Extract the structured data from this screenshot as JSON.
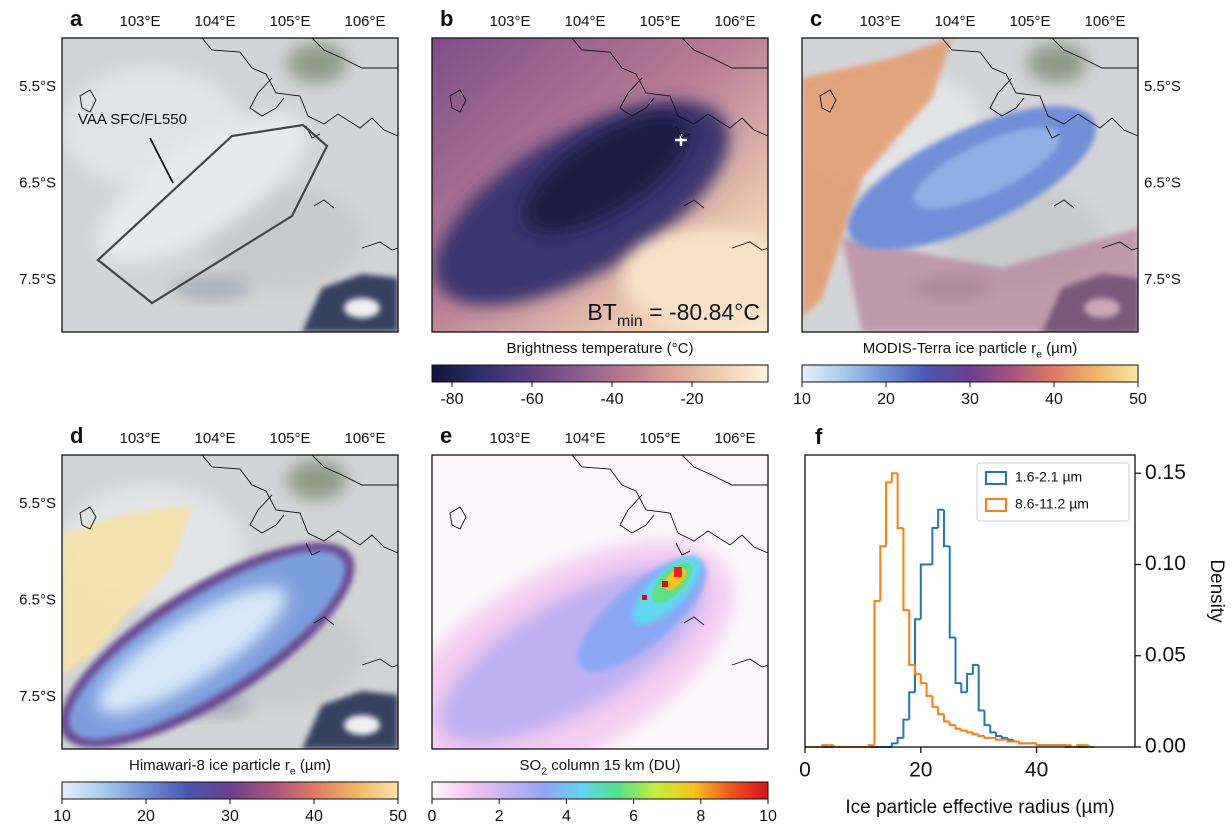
{
  "chart_data": [
    {
      "type": "map",
      "label": "a",
      "xlim": [
        101.96,
        106.44
      ],
      "ylim": [
        -8.04,
        -4.99
      ],
      "xticks": [
        {
          "value": 103,
          "label": "103°E"
        },
        {
          "value": 104,
          "label": "104°E"
        },
        {
          "value": 105,
          "label": "105°E"
        },
        {
          "value": 106,
          "label": "106°E"
        }
      ],
      "yticks": [
        {
          "value": -5.5,
          "label": "5.5°S"
        },
        {
          "value": -6.5,
          "label": "6.5°S"
        },
        {
          "value": -7.5,
          "label": "7.5°S"
        }
      ],
      "lat_labels": "left",
      "annotation": "VAA SFC/FL550"
    },
    {
      "type": "map",
      "label": "b",
      "xlim": [
        101.96,
        106.44
      ],
      "ylim": [
        -8.04,
        -4.99
      ],
      "xticks": [
        {
          "value": 103,
          "label": "103°E"
        },
        {
          "value": 104,
          "label": "104°E"
        },
        {
          "value": 105,
          "label": "105°E"
        },
        {
          "value": 106,
          "label": "106°E"
        }
      ],
      "annotation": [
        "BT",
        "min",
        " = -80.84°C"
      ],
      "colorbar": {
        "label": [
          "Brightness temperature (°C)"
        ],
        "lim": [
          -85,
          -1
        ],
        "ticks": [
          -80,
          -60,
          -40,
          -20
        ],
        "colors": [
          "#12123a",
          "#2d2f6e",
          "#5a3f82",
          "#8a5a8e",
          "#b8788f",
          "#dba396",
          "#f1cdb0",
          "#fdf3dc"
        ]
      }
    },
    {
      "type": "map",
      "label": "c",
      "xlim": [
        101.96,
        106.44
      ],
      "ylim": [
        -8.04,
        -4.99
      ],
      "xticks": [
        {
          "value": 103,
          "label": "103°E"
        },
        {
          "value": 104,
          "label": "104°E"
        },
        {
          "value": 105,
          "label": "105°E"
        },
        {
          "value": 106,
          "label": "106°E"
        }
      ],
      "yticks": [
        {
          "value": -5.5,
          "label": "5.5°S"
        },
        {
          "value": -6.5,
          "label": "6.5°S"
        },
        {
          "value": -7.5,
          "label": "7.5°S"
        }
      ],
      "lat_labels": "right",
      "colorbar": {
        "label": [
          "MODIS-Terra ice particle r",
          "e",
          " (µm)"
        ],
        "lim": [
          10,
          50
        ],
        "ticks": [
          10,
          20,
          30,
          40,
          50
        ],
        "colors": [
          "#e3f0fb",
          "#a9c9ee",
          "#6f8fd6",
          "#4a55b0",
          "#6b3f8e",
          "#a8527e",
          "#de7a62",
          "#f3b466",
          "#fbe6a2"
        ]
      }
    },
    {
      "type": "map",
      "label": "d",
      "xlim": [
        101.96,
        106.44
      ],
      "ylim": [
        -8.04,
        -4.99
      ],
      "xticks": [
        {
          "value": 103,
          "label": "103°E"
        },
        {
          "value": 104,
          "label": "104°E"
        },
        {
          "value": 105,
          "label": "105°E"
        },
        {
          "value": 106,
          "label": "106°E"
        }
      ],
      "yticks": [
        {
          "value": -5.5,
          "label": "5.5°S"
        },
        {
          "value": -6.5,
          "label": "6.5°S"
        },
        {
          "value": -7.5,
          "label": "7.5°S"
        }
      ],
      "lat_labels": "left",
      "colorbar": {
        "label": [
          "Himawari-8 ice particle r",
          "e",
          " (µm)"
        ],
        "lim": [
          10,
          50
        ],
        "ticks": [
          10,
          20,
          30,
          40,
          50
        ],
        "colors": [
          "#e3f0fb",
          "#a9c9ee",
          "#6f8fd6",
          "#4a55b0",
          "#6b3f8e",
          "#a8527e",
          "#de7a62",
          "#f3b466",
          "#fbe6a2"
        ]
      }
    },
    {
      "type": "map",
      "label": "e",
      "xlim": [
        101.96,
        106.44
      ],
      "ylim": [
        -8.04,
        -4.99
      ],
      "xticks": [
        {
          "value": 103,
          "label": "103°E"
        },
        {
          "value": 104,
          "label": "104°E"
        },
        {
          "value": 105,
          "label": "105°E"
        },
        {
          "value": 106,
          "label": "106°E"
        }
      ],
      "colorbar": {
        "label": [
          "SO",
          "2",
          " column 15 km (DU)"
        ],
        "lim": [
          0,
          10
        ],
        "ticks": [
          0,
          2,
          4,
          6,
          8,
          10
        ],
        "colors": [
          "#fdf6fc",
          "#f3c6ef",
          "#c9b2f3",
          "#8fa6f5",
          "#5fd3f2",
          "#55e08a",
          "#c8ee3a",
          "#f6c21c",
          "#f2561d",
          "#d60f12"
        ]
      }
    },
    {
      "type": "histogram",
      "label": "f",
      "xlabel": "Ice particle effective radius (µm)",
      "ylabel": "Density",
      "xlim": [
        0,
        57
      ],
      "ylim": [
        0,
        0.16
      ],
      "xticks": [
        0,
        20,
        40
      ],
      "yticks": [
        {
          "value": 0,
          "label": "0.00"
        },
        {
          "value": 0.05,
          "label": "0.05"
        },
        {
          "value": 0.1,
          "label": "0.10"
        },
        {
          "value": 0.15,
          "label": "0.15"
        }
      ],
      "legend": "upper right",
      "bins": [
        0,
        1,
        2,
        3,
        4,
        5,
        6,
        7,
        8,
        9,
        10,
        11,
        12,
        13,
        14,
        15,
        16,
        17,
        18,
        19,
        20,
        21,
        22,
        23,
        24,
        25,
        26,
        27,
        28,
        29,
        30,
        31,
        32,
        33,
        34,
        35,
        36,
        37,
        38,
        39,
        40,
        41,
        42,
        43,
        44,
        45,
        46,
        47,
        48,
        49,
        50
      ],
      "series": [
        {
          "name": "1.6-2.1 µm",
          "color": "#1f77b4",
          "values": [
            0,
            0,
            0,
            0,
            0,
            0,
            0,
            0,
            0,
            0,
            0,
            0,
            0,
            0,
            0,
            0.002,
            0.005,
            0.015,
            0.03,
            0.07,
            0.1,
            0.1,
            0.12,
            0.13,
            0.11,
            0.06,
            0.035,
            0.03,
            0.04,
            0.045,
            0.02,
            0.012,
            0.008,
            0.006,
            0.005,
            0.004,
            0.003,
            0.002,
            0.002,
            0.002,
            0.001,
            0.001,
            0.001,
            0.001,
            0.001,
            0,
            0,
            0,
            0,
            0
          ]
        },
        {
          "name": "8.6-11.2 µm",
          "color": "#ff7f0e",
          "values": [
            0,
            0,
            0,
            0.001,
            0.001,
            0,
            0,
            0,
            0,
            0,
            0,
            0.001,
            0.08,
            0.11,
            0.145,
            0.15,
            0.12,
            0.075,
            0.045,
            0.04,
            0.035,
            0.028,
            0.022,
            0.018,
            0.014,
            0.012,
            0.01,
            0.009,
            0.008,
            0.007,
            0.006,
            0.005,
            0.005,
            0.004,
            0.004,
            0.003,
            0.003,
            0.002,
            0.002,
            0.002,
            0.001,
            0.001,
            0.001,
            0.001,
            0.001,
            0.001,
            0,
            0.001,
            0.001,
            0
          ]
        }
      ]
    }
  ]
}
